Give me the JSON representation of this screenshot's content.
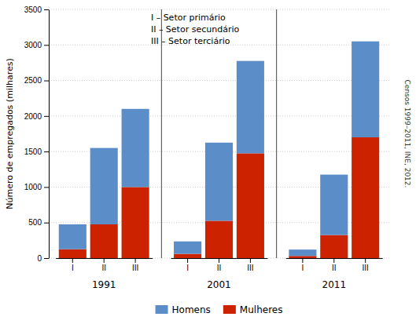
{
  "chart_data": {
    "type": "bar",
    "stacked": true,
    "ylabel": "Número de empregados (milhares)",
    "groups": [
      "1991",
      "2001",
      "2011"
    ],
    "categories": [
      "I",
      "II",
      "III",
      "I",
      "II",
      "III",
      "I",
      "II",
      "III"
    ],
    "series": [
      {
        "name": "Homens",
        "color": "#5B8DC8",
        "values": [
          350,
          1075,
          1100,
          175,
          1100,
          1300,
          90,
          850,
          1350
        ]
      },
      {
        "name": "Mulheres",
        "color": "#CC2200",
        "values": [
          125,
          475,
          1000,
          60,
          525,
          1475,
          30,
          325,
          1700
        ]
      }
    ],
    "ylim": [
      0,
      3500
    ],
    "yticks": [
      0,
      500,
      1000,
      1500,
      2000,
      2500,
      3000,
      3500
    ],
    "grid": true,
    "annotations": [
      "I – Setor primário",
      "II – Setor secundário",
      "III – Setor terciário"
    ],
    "source": "Censos 1999–2011, INE, 2012."
  }
}
